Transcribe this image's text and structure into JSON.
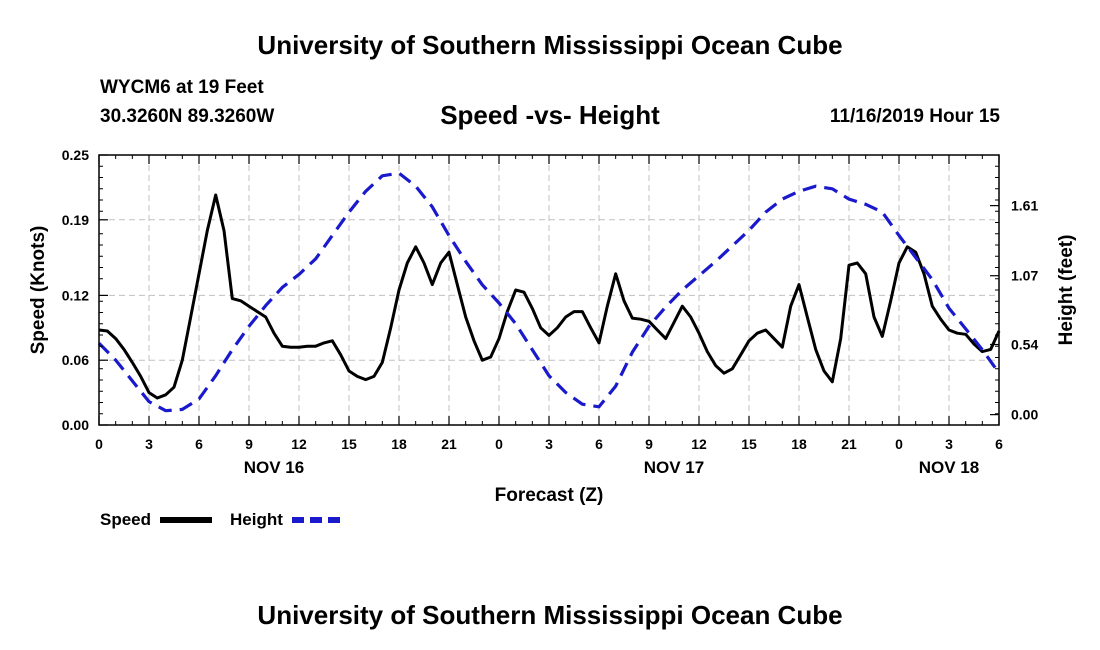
{
  "header": {
    "title": "University of Southern Mississippi Ocean Cube",
    "station": "WYCM6 at 19 Feet",
    "coords": "30.3260N 89.3260W",
    "chart_title": "Speed -vs- Height",
    "run_time": "11/16/2019 Hour 15"
  },
  "footer": {
    "title": "University of Southern Mississippi Ocean Cube"
  },
  "colors": {
    "speed": "#000000",
    "height": "#1a1acc",
    "grid": "#c0c0c0"
  },
  "chart_data": {
    "type": "line",
    "title": "Speed -vs- Height",
    "xlabel": "Forecast (Z)",
    "ylabel": "Speed (Knots)",
    "ylabel_right": "Height (feet)",
    "x_unit": "hours from 00Z Nov 16",
    "xlim": [
      0,
      54
    ],
    "ylim": [
      0,
      0.25
    ],
    "ylim_right": [
      -0.08,
      2.0
    ],
    "x_ticks": [
      0,
      3,
      6,
      9,
      12,
      15,
      18,
      21,
      24,
      27,
      30,
      33,
      36,
      39,
      42,
      45,
      48,
      51,
      54
    ],
    "x_tick_labels": [
      "0",
      "3",
      "6",
      "9",
      "12",
      "15",
      "18",
      "21",
      "0",
      "3",
      "6",
      "9",
      "12",
      "15",
      "18",
      "21",
      "0",
      "3",
      "6"
    ],
    "y_ticks": [
      0.0,
      0.06,
      0.12,
      0.19,
      0.25
    ],
    "y_tick_labels": [
      "0.00",
      "0.06",
      "0.12",
      "0.19",
      "0.25"
    ],
    "y2_ticks": [
      0.0,
      0.54,
      1.07,
      1.61
    ],
    "y2_tick_labels": [
      "0.00",
      "0.54",
      "1.07",
      "1.61"
    ],
    "date_labels": [
      {
        "x": 10.5,
        "label": "NOV 16"
      },
      {
        "x": 34.5,
        "label": "NOV 17"
      },
      {
        "x": 51.0,
        "label": "NOV 18"
      }
    ],
    "grid": true,
    "legend": [
      {
        "name": "Speed",
        "style": "solid"
      },
      {
        "name": "Height",
        "style": "dashed"
      }
    ],
    "series": [
      {
        "name": "Speed",
        "axis": "left",
        "x": [
          0,
          0.5,
          1,
          1.5,
          2,
          2.5,
          3,
          3.5,
          4,
          4.5,
          5,
          5.5,
          6,
          6.5,
          7,
          7.5,
          8,
          8.5,
          9,
          9.5,
          10,
          10.5,
          11,
          11.5,
          12,
          12.5,
          13,
          13.5,
          14,
          14.5,
          15,
          15.5,
          16,
          16.5,
          17,
          17.5,
          18,
          18.5,
          19,
          19.5,
          20,
          20.5,
          21,
          21.5,
          22,
          22.5,
          23,
          23.5,
          24,
          24.5,
          25,
          25.5,
          26,
          26.5,
          27,
          27.5,
          28,
          28.5,
          29,
          29.5,
          30,
          30.5,
          31,
          31.5,
          32,
          32.5,
          33,
          33.5,
          34,
          34.5,
          35,
          35.5,
          36,
          36.5,
          37,
          37.5,
          38,
          38.5,
          39,
          39.5,
          40,
          40.5,
          41,
          41.5,
          42,
          42.5,
          43,
          43.5,
          44,
          44.5,
          45,
          45.5,
          46,
          46.5,
          47,
          47.5,
          48,
          48.5,
          49,
          49.5,
          50,
          50.5,
          51,
          51.5,
          52,
          52.5,
          53,
          53.5,
          54
        ],
        "values": [
          0.088,
          0.087,
          0.08,
          0.07,
          0.058,
          0.045,
          0.03,
          0.025,
          0.028,
          0.035,
          0.06,
          0.1,
          0.14,
          0.18,
          0.213,
          0.18,
          0.117,
          0.115,
          0.11,
          0.105,
          0.1,
          0.085,
          0.073,
          0.072,
          0.072,
          0.073,
          0.073,
          0.076,
          0.078,
          0.065,
          0.05,
          0.045,
          0.042,
          0.045,
          0.058,
          0.09,
          0.125,
          0.15,
          0.165,
          0.15,
          0.13,
          0.15,
          0.16,
          0.13,
          0.1,
          0.078,
          0.06,
          0.063,
          0.08,
          0.105,
          0.125,
          0.123,
          0.108,
          0.09,
          0.083,
          0.09,
          0.1,
          0.105,
          0.105,
          0.09,
          0.076,
          0.11,
          0.14,
          0.115,
          0.099,
          0.098,
          0.096,
          0.088,
          0.08,
          0.095,
          0.11,
          0.1,
          0.085,
          0.068,
          0.055,
          0.048,
          0.052,
          0.065,
          0.078,
          0.085,
          0.088,
          0.08,
          0.072,
          0.11,
          0.13,
          0.1,
          0.07,
          0.05,
          0.04,
          0.08,
          0.148,
          0.15,
          0.14,
          0.1,
          0.082,
          0.115,
          0.15,
          0.165,
          0.16,
          0.14,
          0.11,
          0.098,
          0.088,
          0.085,
          0.084,
          0.075,
          0.068,
          0.07,
          0.087
        ]
      },
      {
        "name": "Height",
        "axis": "right",
        "x": [
          0,
          1,
          2,
          3,
          4,
          5,
          6,
          7,
          8,
          9,
          10,
          11,
          12,
          13,
          14,
          15,
          16,
          17,
          18,
          19,
          20,
          21,
          22,
          23,
          24,
          25,
          26,
          27,
          28,
          29,
          30,
          31,
          32,
          33,
          34,
          35,
          36,
          37,
          38,
          39,
          40,
          41,
          42,
          43,
          44,
          45,
          46,
          47,
          48,
          49,
          50,
          51,
          52,
          53,
          54
        ],
        "values": [
          0.55,
          0.42,
          0.26,
          0.1,
          0.03,
          0.04,
          0.12,
          0.3,
          0.5,
          0.68,
          0.84,
          0.98,
          1.08,
          1.2,
          1.38,
          1.56,
          1.72,
          1.84,
          1.86,
          1.76,
          1.6,
          1.38,
          1.18,
          1.0,
          0.86,
          0.7,
          0.5,
          0.3,
          0.17,
          0.08,
          0.06,
          0.22,
          0.48,
          0.68,
          0.83,
          0.96,
          1.07,
          1.18,
          1.3,
          1.42,
          1.56,
          1.66,
          1.72,
          1.76,
          1.74,
          1.66,
          1.62,
          1.56,
          1.38,
          1.21,
          1.04,
          0.82,
          0.66,
          0.5,
          0.32
        ]
      }
    ]
  }
}
